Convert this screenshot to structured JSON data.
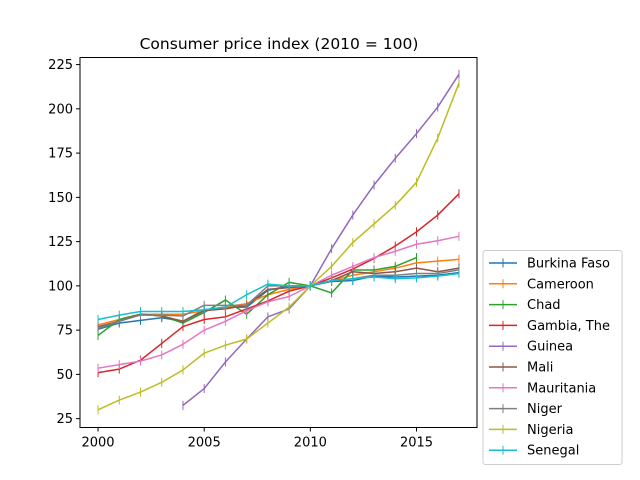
{
  "chart_data": {
    "type": "line",
    "title": "Consumer price index (2010 = 100)",
    "xlabel": "",
    "ylabel": "",
    "xlim": [
      1999.15,
      2017.85
    ],
    "ylim": [
      20,
      229
    ],
    "xticks": [
      2000,
      2005,
      2010,
      2015
    ],
    "yticks": [
      25,
      50,
      75,
      100,
      125,
      150,
      175,
      200,
      225
    ],
    "grid": false,
    "legend_position": "outside-right-bottom",
    "marker": "vertical-line",
    "series": [
      {
        "name": "Burkina Faso",
        "color": "#1f77b4",
        "x": [
          2000,
          2001,
          2002,
          2003,
          2004,
          2005,
          2006,
          2007,
          2008,
          2009,
          2010,
          2011,
          2012,
          2013,
          2014,
          2015,
          2016,
          2017
        ],
        "y": [
          75.5,
          79,
          80.5,
          82,
          80,
          86.5,
          88,
          88,
          97.5,
          100,
          100,
          102.5,
          103,
          105.5,
          105,
          105.5,
          106,
          107.5
        ]
      },
      {
        "name": "Cameroon",
        "color": "#ff7f0e",
        "x": [
          2000,
          2001,
          2002,
          2003,
          2004,
          2005,
          2006,
          2007,
          2008,
          2009,
          2010,
          2011,
          2012,
          2013,
          2014,
          2015,
          2016,
          2017
        ],
        "y": [
          78,
          81,
          84,
          84,
          84,
          86,
          88,
          90,
          95,
          98,
          100,
          103,
          106,
          108,
          110,
          113,
          114,
          115
        ]
      },
      {
        "name": "Chad",
        "color": "#2ca02c",
        "x": [
          2000,
          2001,
          2002,
          2003,
          2004,
          2005,
          2006,
          2007,
          2008,
          2009,
          2010,
          2011,
          2012,
          2013,
          2014,
          2015
        ],
        "y": [
          72,
          81,
          84,
          83,
          79,
          85,
          92,
          84,
          95,
          102,
          100,
          96,
          109,
          109,
          111,
          116
        ]
      },
      {
        "name": "Gambia, The",
        "color": "#d62728",
        "x": [
          2000,
          2001,
          2002,
          2003,
          2004,
          2005,
          2006,
          2007,
          2008,
          2009,
          2010,
          2011,
          2012,
          2013,
          2014,
          2015,
          2016,
          2017
        ],
        "y": [
          51,
          53,
          58,
          67.5,
          77,
          81,
          82.5,
          87,
          91.5,
          97,
          100,
          104.5,
          109.5,
          115.5,
          122.5,
          130.5,
          140,
          152
        ]
      },
      {
        "name": "Guinea",
        "color": "#9467bd",
        "x": [
          2004,
          2005,
          2006,
          2007,
          2008,
          2009,
          2010,
          2011,
          2012,
          2013,
          2014,
          2015,
          2016,
          2017
        ],
        "y": [
          32.5,
          42,
          57,
          70,
          82.5,
          87,
          100,
          121,
          140,
          157,
          172,
          186,
          201,
          219.5
        ]
      },
      {
        "name": "Mali",
        "color": "#8c564b",
        "x": [
          2000,
          2001,
          2002,
          2003,
          2004,
          2005,
          2006,
          2007,
          2008,
          2009,
          2010,
          2011,
          2012,
          2013,
          2014,
          2015,
          2016,
          2017
        ],
        "y": [
          77,
          80,
          84,
          83,
          80,
          86,
          87,
          89,
          98,
          99,
          100,
          103,
          108,
          107,
          108,
          110,
          108,
          110
        ]
      },
      {
        "name": "Mauritania",
        "color": "#e377c2",
        "x": [
          2000,
          2001,
          2002,
          2003,
          2004,
          2005,
          2006,
          2007,
          2008,
          2009,
          2010,
          2011,
          2012,
          2013,
          2014,
          2015,
          2016,
          2017
        ],
        "y": [
          53.5,
          55.5,
          57.5,
          61,
          67,
          75,
          80,
          86,
          91,
          94,
          100,
          106,
          111,
          116,
          119.5,
          123.5,
          125.5,
          128
        ]
      },
      {
        "name": "Niger",
        "color": "#7f7f7f",
        "x": [
          2000,
          2001,
          2002,
          2003,
          2004,
          2005,
          2006,
          2007,
          2008,
          2009,
          2010,
          2011,
          2012,
          2013,
          2014,
          2015,
          2016,
          2017
        ],
        "y": [
          76,
          80,
          83.5,
          83.5,
          83,
          89,
          89,
          89,
          100,
          100,
          100,
          103,
          104,
          106,
          106,
          107,
          107,
          109
        ]
      },
      {
        "name": "Nigeria",
        "color": "#bcbd22",
        "x": [
          2000,
          2001,
          2002,
          2003,
          2004,
          2005,
          2006,
          2007,
          2008,
          2009,
          2010,
          2011,
          2012,
          2013,
          2014,
          2015,
          2016,
          2017
        ],
        "y": [
          30,
          35.5,
          40,
          45.5,
          52.5,
          62,
          66.5,
          70,
          79,
          88,
          100,
          111,
          124.5,
          135,
          145.5,
          158.5,
          183.5,
          214.5
        ]
      },
      {
        "name": "Senegal",
        "color": "#17becf",
        "x": [
          2000,
          2001,
          2002,
          2003,
          2004,
          2005,
          2006,
          2007,
          2008,
          2009,
          2010,
          2011,
          2012,
          2013,
          2014,
          2015,
          2016,
          2017
        ],
        "y": [
          81,
          83.5,
          85.5,
          85.5,
          85.5,
          86.5,
          88,
          95,
          101,
          100,
          100,
          103,
          104,
          105,
          104,
          104.5,
          105.5,
          107
        ]
      }
    ]
  }
}
